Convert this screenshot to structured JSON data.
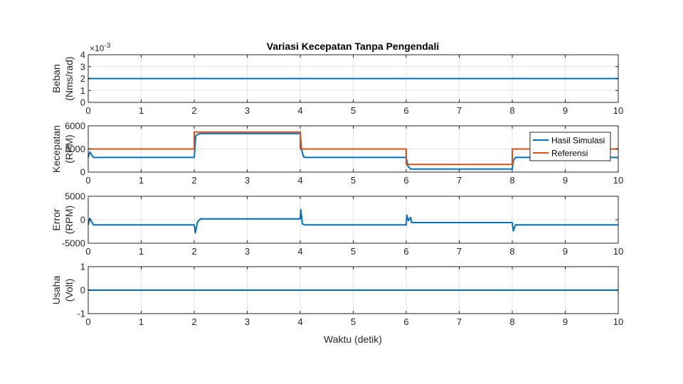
{
  "title": "Variasi Kecepatan Tanpa Pengendali",
  "xlabel": "Waktu (detik)",
  "colors": {
    "series1": "#0072BD",
    "series2": "#D95319",
    "grid": "#e3e3e3",
    "axis": "#262626"
  },
  "chart_data": [
    {
      "type": "line",
      "ylabel": [
        "Beban",
        "(Nms/rad)"
      ],
      "exponent_label": "×10-3",
      "xlim": [
        0,
        10
      ],
      "ylim": [
        0,
        4
      ],
      "xticks": [
        "0",
        "1",
        "2",
        "3",
        "4",
        "5",
        "6",
        "7",
        "8",
        "9",
        "10"
      ],
      "yticks": [
        "0",
        "1",
        "2",
        "3",
        "4"
      ],
      "grid": true,
      "series": [
        {
          "color": "#0072BD",
          "x": [
            0,
            10
          ],
          "y": [
            2,
            2
          ]
        }
      ]
    },
    {
      "type": "line",
      "ylabel": [
        "Kecepatan",
        "(RPM)"
      ],
      "xlim": [
        0,
        10
      ],
      "ylim": [
        0,
        6000
      ],
      "xticks": [
        "0",
        "1",
        "2",
        "3",
        "4",
        "5",
        "6",
        "7",
        "8",
        "9",
        "10"
      ],
      "yticks": [
        "0",
        "3000",
        "6000"
      ],
      "grid": true,
      "legend": "top-right",
      "series": [
        {
          "name": "Hasil Simulasi",
          "color": "#0072BD",
          "x": [
            0,
            0.03,
            0.1,
            2.0,
            2.03,
            2.08,
            2.12,
            4.0,
            4.02,
            4.06,
            4.1,
            6.0,
            6.03,
            6.08,
            6.1,
            8.0,
            8.02,
            8.06,
            8.1,
            10
          ],
          "y": [
            1900,
            2600,
            1900,
            1900,
            4700,
            4950,
            5000,
            5000,
            3100,
            2000,
            1900,
            1900,
            800,
            400,
            400,
            400,
            1500,
            1900,
            1900,
            1900
          ]
        },
        {
          "name": "Referensi",
          "color": "#D95319",
          "x": [
            0,
            2,
            2,
            4,
            4,
            6,
            6,
            8,
            8,
            10
          ],
          "y": [
            3000,
            3000,
            5200,
            5200,
            3000,
            3000,
            1000,
            1000,
            3000,
            3000
          ]
        }
      ]
    },
    {
      "type": "line",
      "ylabel": [
        "Error",
        "(RPM)"
      ],
      "xlim": [
        0,
        10
      ],
      "ylim": [
        -5000,
        5000
      ],
      "xticks": [
        "0",
        "1",
        "2",
        "3",
        "4",
        "5",
        "6",
        "7",
        "8",
        "9",
        "10"
      ],
      "yticks": [
        "-5000",
        "0",
        "5000"
      ],
      "grid": true,
      "series": [
        {
          "color": "#0072BD",
          "x": [
            0,
            0.03,
            0.1,
            2.0,
            2.02,
            2.06,
            2.12,
            4.0,
            4.01,
            4.04,
            4.1,
            6.0,
            6.01,
            6.04,
            6.08,
            6.1,
            8.0,
            8.02,
            8.06,
            8.1,
            10
          ],
          "y": [
            -1100,
            300,
            -1100,
            -1100,
            -2800,
            -500,
            200,
            200,
            2200,
            -900,
            -1100,
            -1100,
            1000,
            -200,
            500,
            -600,
            -600,
            -2400,
            -1100,
            -1100,
            -1100
          ]
        }
      ]
    },
    {
      "type": "line",
      "ylabel": [
        "Usaha",
        "(Volt)"
      ],
      "xlim": [
        0,
        10
      ],
      "ylim": [
        -1,
        1
      ],
      "xticks": [
        "0",
        "1",
        "2",
        "3",
        "4",
        "5",
        "6",
        "7",
        "8",
        "9",
        "10"
      ],
      "yticks": [
        "-1",
        "0",
        "1"
      ],
      "grid": true,
      "series": [
        {
          "color": "#0072BD",
          "x": [
            0,
            10
          ],
          "y": [
            0,
            0
          ]
        }
      ]
    }
  ]
}
